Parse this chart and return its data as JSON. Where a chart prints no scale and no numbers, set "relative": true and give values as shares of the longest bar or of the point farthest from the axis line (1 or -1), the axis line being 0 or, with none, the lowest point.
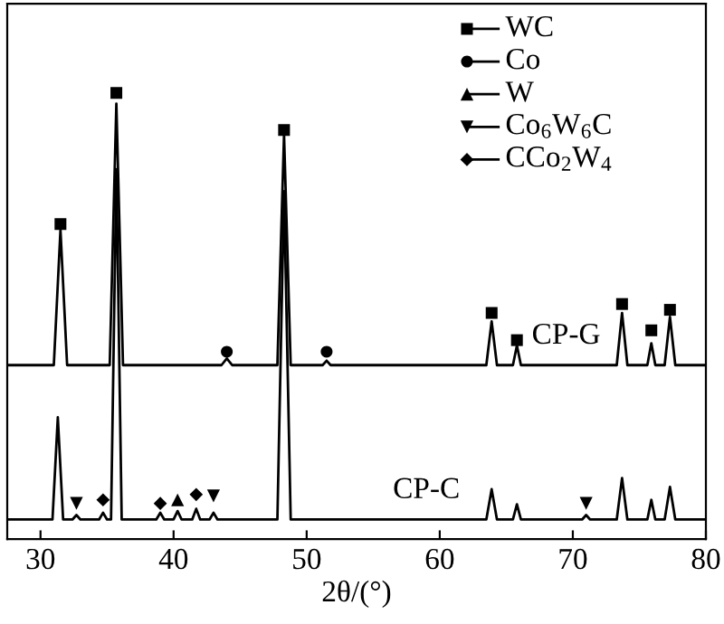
{
  "chart_data": {
    "type": "line",
    "relative": true,
    "xlabel": "2θ/(°)",
    "xlim": [
      27.5,
      80
    ],
    "xticks": [
      30,
      40,
      50,
      60,
      70,
      80
    ],
    "tick_labels": "x",
    "legend": "top right",
    "grid": false,
    "marker": "none",
    "line_style": "solid",
    "series": [
      {
        "name": "CP-G",
        "color": "#000000",
        "x": [
          27.5,
          31.0,
          31.5,
          32.0,
          33.0,
          35.2,
          35.7,
          36.2,
          43.6,
          44.0,
          44.4,
          47.8,
          48.3,
          48.8,
          51.2,
          51.5,
          51.8,
          63.5,
          63.9,
          64.3,
          65.5,
          65.8,
          66.1,
          73.3,
          73.7,
          74.1,
          75.6,
          75.9,
          76.2,
          76.9,
          77.3,
          77.7,
          80.0
        ],
        "values": [
          0.39,
          0.39,
          0.693,
          0.39,
          0.39,
          0.39,
          0.976,
          0.39,
          0.39,
          0.405,
          0.39,
          0.39,
          0.907,
          0.39,
          0.39,
          0.4,
          0.39,
          0.39,
          0.488,
          0.39,
          0.39,
          0.434,
          0.39,
          0.39,
          0.507,
          0.39,
          0.39,
          0.439,
          0.39,
          0.39,
          0.498,
          0.39,
          0.39
        ]
      },
      {
        "name": "CP-C",
        "color": "#000000",
        "x": [
          27.5,
          30.9,
          31.3,
          31.7,
          32.4,
          32.7,
          33.0,
          34.4,
          34.7,
          35.0,
          35.3,
          35.7,
          36.1,
          38.7,
          39.0,
          39.3,
          40.0,
          40.3,
          40.6,
          41.4,
          41.7,
          42.0,
          42.7,
          43.0,
          43.3,
          47.8,
          48.3,
          48.8,
          63.5,
          63.9,
          64.3,
          65.5,
          65.8,
          66.1,
          70.7,
          71.0,
          71.3,
          73.3,
          73.7,
          74.1,
          75.6,
          75.9,
          76.2,
          76.9,
          77.3,
          77.7,
          80.0
        ],
        "values": [
          0.044,
          0.044,
          0.273,
          0.044,
          0.044,
          0.054,
          0.044,
          0.044,
          0.059,
          0.044,
          0.044,
          0.829,
          0.044,
          0.044,
          0.059,
          0.044,
          0.044,
          0.063,
          0.044,
          0.044,
          0.068,
          0.044,
          0.044,
          0.059,
          0.044,
          0.044,
          0.78,
          0.044,
          0.044,
          0.112,
          0.044,
          0.044,
          0.078,
          0.044,
          0.044,
          0.054,
          0.044,
          0.044,
          0.137,
          0.044,
          0.044,
          0.088,
          0.044,
          0.044,
          0.117,
          0.044,
          0.044
        ]
      },
      {
        "name": "WC",
        "type": "scatter",
        "marker": "square",
        "color": "#000000",
        "x": [
          31.5,
          35.7,
          48.3,
          63.9,
          65.8,
          73.7,
          75.9,
          77.3
        ],
        "values": [
          0.706,
          1.0,
          0.917,
          0.507,
          0.446,
          0.527,
          0.468,
          0.514
        ]
      },
      {
        "name": "Co",
        "type": "scatter",
        "marker": "circle",
        "color": "#000000",
        "x": [
          44.0,
          51.5
        ],
        "values": [
          0.42,
          0.42
        ]
      },
      {
        "name": "W",
        "type": "scatter",
        "marker": "triangle",
        "color": "#000000",
        "x": [
          40.3
        ],
        "values": [
          0.088
        ]
      },
      {
        "name": "Co$_{6}$W$_{6}$C",
        "type": "scatter",
        "marker": "triangle_down",
        "color": "#000000",
        "x": [
          32.7,
          43.0,
          71.0
        ],
        "values": [
          0.08,
          0.097,
          0.08
        ]
      },
      {
        "name": "CCo$_{2}$W$_{4}$",
        "type": "scatter",
        "marker": "diamond",
        "color": "#000000",
        "x": [
          34.7,
          39.0,
          41.7
        ],
        "values": [
          0.088,
          0.08,
          0.1
        ]
      }
    ]
  }
}
